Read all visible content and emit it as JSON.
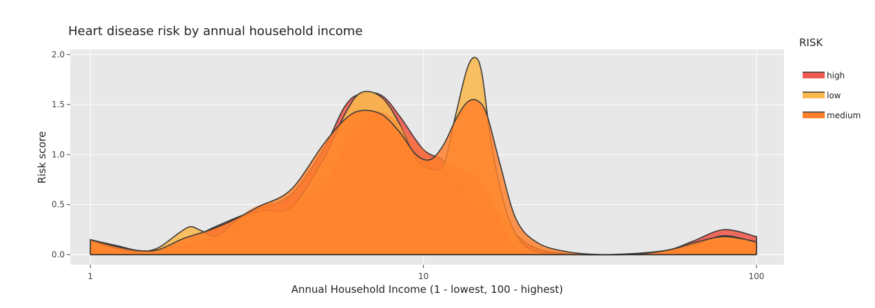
{
  "chart_data": {
    "type": "area",
    "title": "Heart disease risk by annual household income",
    "xlabel": "Annual Household Income (1 - lowest, 100 - highest)",
    "ylabel": "Risk score",
    "x_scale": "log",
    "xlim": [
      0.87,
      121
    ],
    "ylim": [
      -0.1,
      2.05
    ],
    "x_ticks": [
      1,
      10,
      100
    ],
    "x_tick_labels": [
      "1",
      "10",
      "100"
    ],
    "y_ticks": [
      0,
      0.5,
      1,
      1.5,
      2
    ],
    "y_tick_labels": [
      "0.0",
      "0.5",
      "1.0",
      "1.5",
      "2.0"
    ],
    "grid": true,
    "legend": {
      "title": "RISK",
      "placement": "right"
    },
    "series": [
      {
        "name": "high",
        "color": "#f05a4f",
        "x": [
          1,
          1.2,
          1.4,
          1.6,
          1.9,
          2.3,
          2.7,
          3.2,
          4,
          5,
          5.8,
          6.5,
          7.5,
          8.5,
          10,
          11.5,
          13,
          14.5,
          16.5,
          19,
          22,
          27,
          35,
          45,
          55,
          65,
          80,
          100
        ],
        "values": [
          0.15,
          0.09,
          0.04,
          0.05,
          0.12,
          0.26,
          0.36,
          0.46,
          0.6,
          1.05,
          1.48,
          1.61,
          1.59,
          1.38,
          1.05,
          0.94,
          0.7,
          0.5,
          0.45,
          0.2,
          0.06,
          0.01,
          0,
          0.01,
          0.05,
          0.14,
          0.25,
          0.18
        ]
      },
      {
        "name": "low",
        "color": "#f9b84e",
        "x": [
          1,
          1.2,
          1.4,
          1.6,
          1.85,
          2,
          2.15,
          2.4,
          2.8,
          3.3,
          4,
          5,
          5.8,
          6.5,
          7.5,
          8.5,
          9.5,
          10.5,
          11.5,
          12.5,
          13.5,
          14.3,
          15,
          16,
          17.5,
          19,
          21,
          25,
          35,
          50,
          65,
          80,
          100
        ],
        "values": [
          0.14,
          0.06,
          0.03,
          0.07,
          0.22,
          0.28,
          0.24,
          0.19,
          0.36,
          0.44,
          0.47,
          0.95,
          1.4,
          1.62,
          1.57,
          1.3,
          0.96,
          0.86,
          0.9,
          1.4,
          1.85,
          1.97,
          1.8,
          1.1,
          0.5,
          0.2,
          0.05,
          0.01,
          0,
          0.03,
          0.1,
          0.19,
          0.12
        ]
      },
      {
        "name": "medium",
        "color": "#ff7f2a",
        "x": [
          1,
          1.2,
          1.4,
          1.6,
          1.9,
          2.3,
          2.7,
          3.2,
          4,
          5,
          5.8,
          6.5,
          7.5,
          8.5,
          9.5,
          10.5,
          11.5,
          12.5,
          13.5,
          14.5,
          15.5,
          17,
          19,
          22,
          27,
          35,
          45,
          55,
          65,
          80,
          100
        ],
        "values": [
          0.15,
          0.08,
          0.04,
          0.05,
          0.16,
          0.25,
          0.35,
          0.48,
          0.65,
          1.1,
          1.35,
          1.44,
          1.4,
          1.22,
          1.0,
          0.95,
          1.1,
          1.35,
          1.52,
          1.54,
          1.4,
          0.9,
          0.35,
          0.12,
          0.03,
          0,
          0.01,
          0.05,
          0.12,
          0.18,
          0.13
        ]
      }
    ],
    "background_series": {
      "color": "#ff7f2a",
      "x": [
        1,
        1.3,
        1.6,
        2,
        2.5,
        3,
        3.5,
        4,
        5,
        6,
        7,
        8,
        9,
        10,
        11,
        12,
        13,
        14,
        15,
        16,
        17,
        18,
        19,
        21,
        25,
        35,
        50,
        65,
        80,
        100
      ],
      "values": [
        0.08,
        0.05,
        0.05,
        0.12,
        0.22,
        0.45,
        0.52,
        0.5,
        0.7,
        1.2,
        1.42,
        1.38,
        1.2,
        1.05,
        0.92,
        0.88,
        0.86,
        0.82,
        0.72,
        0.55,
        0.35,
        0.18,
        0.08,
        0.03,
        0.01,
        0,
        0.02,
        0.08,
        0.15,
        0.1
      ]
    }
  }
}
